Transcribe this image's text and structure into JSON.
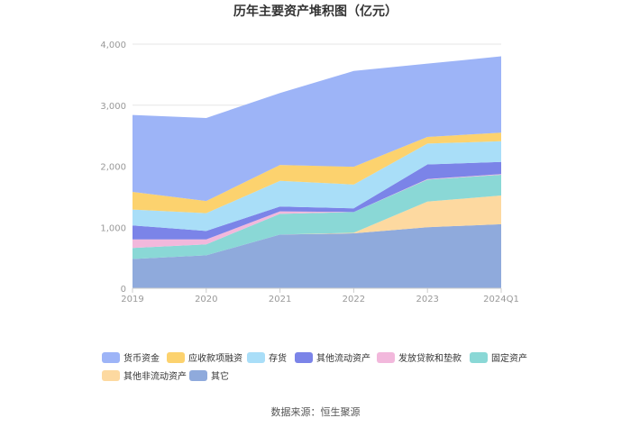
{
  "chart_data": {
    "type": "area",
    "stacked": true,
    "title": "历年主要资产堆积图（亿元）",
    "categories": [
      "2019",
      "2020",
      "2021",
      "2022",
      "2023",
      "2024Q1"
    ],
    "ylim": [
      0,
      4000
    ],
    "yticks": [
      "0",
      "1,000",
      "2,000",
      "3,000",
      "4,000"
    ],
    "grid": true,
    "legend_position": "bottom",
    "series": [
      {
        "name": "其它",
        "color": "#8faadc",
        "values": [
          480,
          540,
          880,
          900,
          1000,
          1050
        ]
      },
      {
        "name": "其他非流动资产",
        "color": "#fdd9a0",
        "values": [
          0,
          0,
          0,
          10,
          420,
          470
        ]
      },
      {
        "name": "固定资产",
        "color": "#8ad8d6",
        "values": [
          180,
          180,
          340,
          340,
          360,
          340
        ]
      },
      {
        "name": "发放贷款和垫款",
        "color": "#f2b8dc",
        "values": [
          140,
          80,
          40,
          0,
          10,
          10
        ]
      },
      {
        "name": "其他流动资产",
        "color": "#7b84e8",
        "values": [
          230,
          140,
          80,
          60,
          240,
          200
        ]
      },
      {
        "name": "存货",
        "color": "#a9def8",
        "values": [
          260,
          290,
          420,
          390,
          340,
          340
        ]
      },
      {
        "name": "应收款项融资",
        "color": "#fcd26e",
        "values": [
          290,
          200,
          260,
          290,
          110,
          140
        ]
      },
      {
        "name": "货币资金",
        "color": "#9db4f7",
        "values": [
          1260,
          1360,
          1180,
          1570,
          1200,
          1250
        ]
      }
    ],
    "legend_order": [
      "货币资金",
      "应收款项融资",
      "存货",
      "其他流动资产",
      "发放贷款和垫款",
      "固定资产",
      "其他非流动资产",
      "其它"
    ]
  },
  "source_label": "数据来源：恒生聚源"
}
